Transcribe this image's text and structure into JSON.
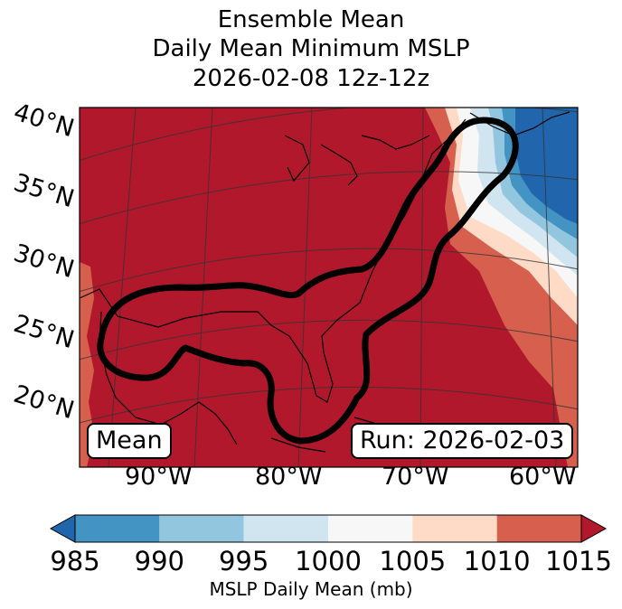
{
  "header": {
    "line1": "Ensemble Mean",
    "line2": "Daily Mean Minimum MSLP",
    "line3": "2026-02-08 12z-12z"
  },
  "labels": {
    "left": "Mean",
    "right": "Run: 2026-02-03"
  },
  "colorbar": {
    "title": "MSLP Daily Mean (mb)",
    "ticks": [
      "985",
      "990",
      "995",
      "1000",
      "1005",
      "1010",
      "1015"
    ],
    "colors": [
      "#2166ac",
      "#4393c3",
      "#92c5de",
      "#d1e5f0",
      "#f7f7f7",
      "#fddbc7",
      "#d6604d",
      "#b2182b"
    ]
  },
  "chart_data": {
    "type": "heatmap",
    "title": "Ensemble Mean Daily Mean Minimum MSLP 2026-02-08 12z-12z",
    "xlabel": "",
    "ylabel": "",
    "lat_ticks": [
      "40°N",
      "35°N",
      "30°N",
      "25°N",
      "20°N"
    ],
    "lon_ticks": [
      "90°W",
      "80°W",
      "70°W",
      "60°W"
    ],
    "colorbar_label": "MSLP Daily Mean (mb)",
    "levels": [
      985,
      990,
      995,
      1000,
      1005,
      1010,
      1015
    ],
    "extend": "both",
    "contour": "thick black outline around Gulf of Mexico, Florida and the US East Coast",
    "regions": [
      {
        "area": "Gulf of Mexico / southeastern US / Mexico",
        "range_mb": "> 1015"
      },
      {
        "area": "Western Atlantic offshore band",
        "range_mb": "1005-1015"
      },
      {
        "area": "Northeast offshore near Nova Scotia",
        "range_mb": "985-1000"
      }
    ]
  }
}
